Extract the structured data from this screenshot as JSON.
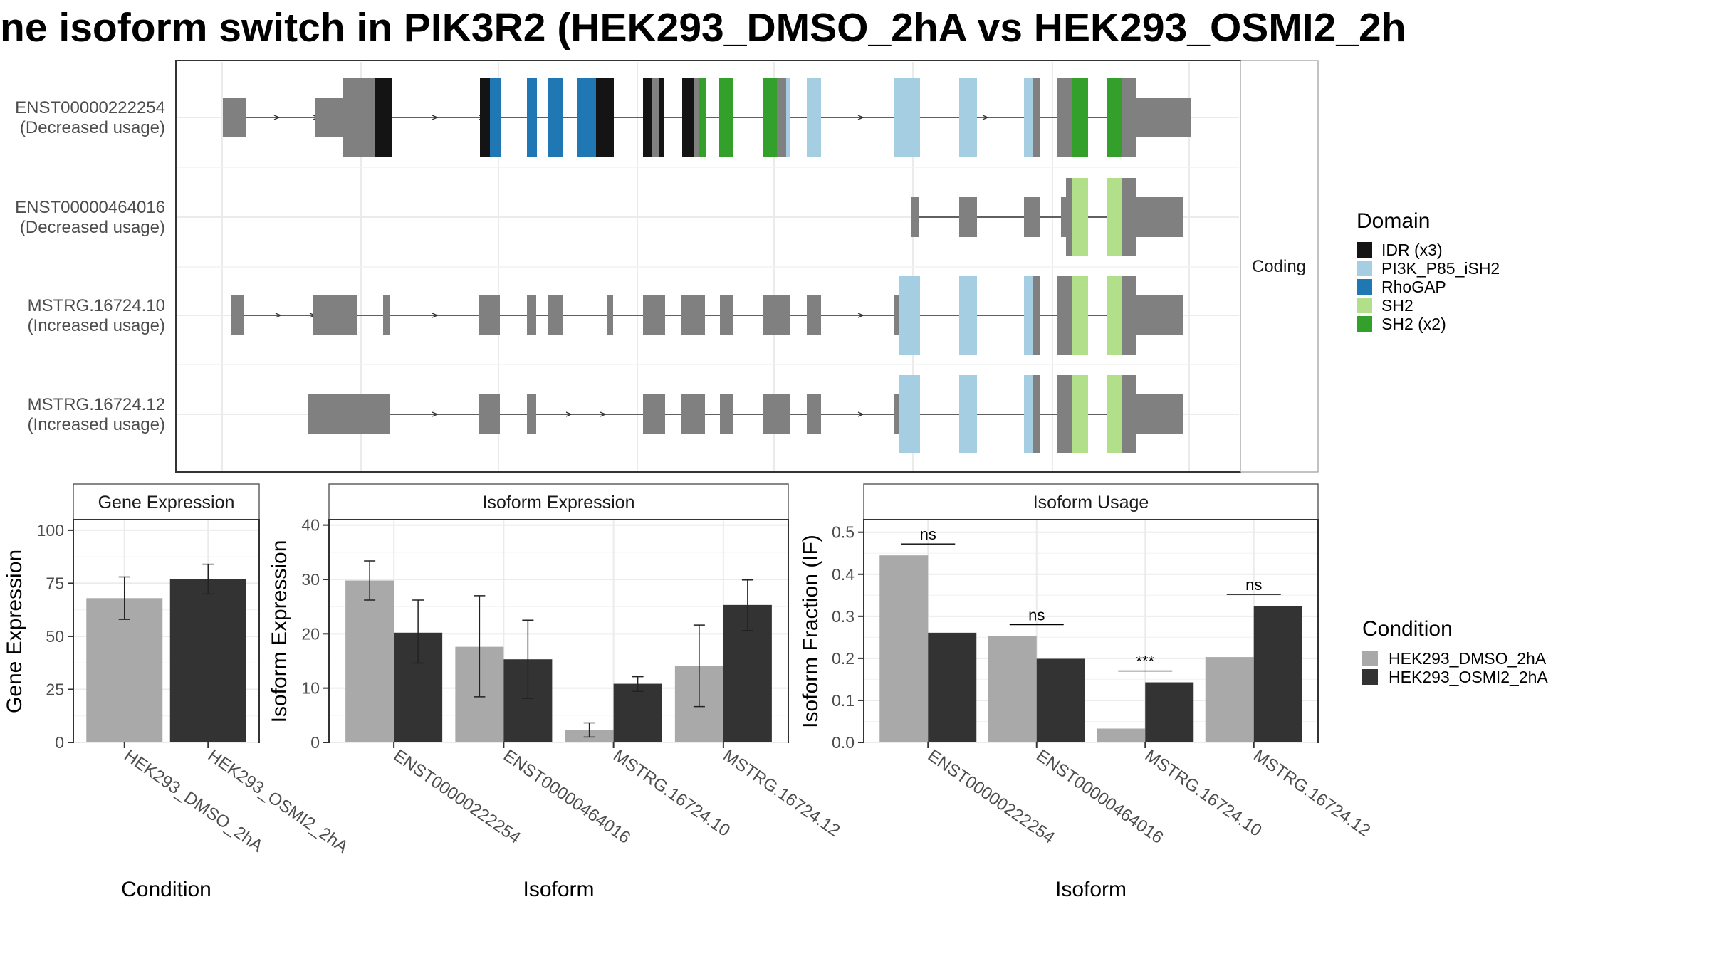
{
  "title": "ne isoform switch in PIK3R2 (HEK293_DMSO_2hA vs HEK293_OSMI2_2h",
  "colors": {
    "IDR (x3)": "#141414",
    "PI3K_P85_iSH2": "#a6cee3",
    "RhoGAP": "#1f78b4",
    "SH2": "#b2df8a",
    "SH2 (x2)": "#33a02c",
    "exon": "#808080",
    "cond1": "#a9a9a9",
    "cond2": "#333333"
  },
  "chart_data": [
    {
      "type": "gene-structure",
      "strip_label": "Coding",
      "legend_title": "Domain",
      "legend": [
        "IDR (x3)",
        "PI3K_P85_iSH2",
        "RhoGAP",
        "SH2",
        "SH2 (x2)"
      ],
      "transcripts": [
        {
          "name": "ENST00000222254",
          "usage": "(Decreased usage)"
        },
        {
          "name": "ENST00000464016",
          "usage": "(Decreased usage)"
        },
        {
          "name": "MSTRG.16724.10",
          "usage": "(Increased usage)"
        },
        {
          "name": "MSTRG.16724.12",
          "usage": "(Increased usage)"
        }
      ]
    },
    {
      "type": "bar",
      "title": "Gene Expression",
      "xlabel": "Condition",
      "ylabel": "Gene Expression",
      "ylim": [
        0,
        105
      ],
      "yticks": [
        0,
        25,
        50,
        75,
        100
      ],
      "categories": [
        "HEK293_DMSO_2hA",
        "HEK293_OSMI2_2hA"
      ],
      "values": [
        68,
        77
      ],
      "errors": [
        [
          58,
          78
        ],
        [
          70,
          84
        ]
      ]
    },
    {
      "type": "bar",
      "title": "Isoform Expression",
      "xlabel": "Isoform",
      "ylabel": "Isoform Expression",
      "ylim": [
        0,
        41
      ],
      "yticks": [
        0,
        10,
        20,
        30,
        40
      ],
      "categories": [
        "ENST00000222254",
        "ENST00000464016",
        "MSTRG.16724.10",
        "MSTRG.16724.12"
      ],
      "series": [
        {
          "name": "HEK293_DMSO_2hA",
          "values": [
            29.8,
            17.6,
            2.3,
            14.1
          ],
          "errors": [
            [
              26.2,
              33.4
            ],
            [
              8.4,
              27.0
            ],
            [
              1.0,
              3.6
            ],
            [
              6.6,
              21.6
            ]
          ]
        },
        {
          "name": "HEK293_OSMI2_2hA",
          "values": [
            20.2,
            15.3,
            10.8,
            25.3
          ],
          "errors": [
            [
              14.6,
              26.2
            ],
            [
              8.1,
              22.5
            ],
            [
              9.4,
              12.1
            ],
            [
              20.6,
              29.9
            ]
          ]
        }
      ]
    },
    {
      "type": "bar",
      "title": "Isoform Usage",
      "xlabel": "Isoform",
      "ylabel": "Isoform Fraction (IF)",
      "ylim": [
        0,
        0.53
      ],
      "yticks": [
        "0.0",
        "0.1",
        "0.2",
        "0.3",
        "0.4",
        "0.5"
      ],
      "categories": [
        "ENST00000222254",
        "ENST00000464016",
        "MSTRG.16724.10",
        "MSTRG.16724.12"
      ],
      "series": [
        {
          "name": "HEK293_DMSO_2hA",
          "values": [
            0.445,
            0.253,
            0.033,
            0.203
          ]
        },
        {
          "name": "HEK293_OSMI2_2hA",
          "values": [
            0.261,
            0.199,
            0.143,
            0.325
          ]
        }
      ],
      "significance": [
        "ns",
        "ns",
        "***",
        "ns"
      ]
    }
  ],
  "condition_legend": {
    "title": "Condition",
    "entries": [
      "HEK293_DMSO_2hA",
      "HEK293_OSMI2_2hA"
    ]
  }
}
